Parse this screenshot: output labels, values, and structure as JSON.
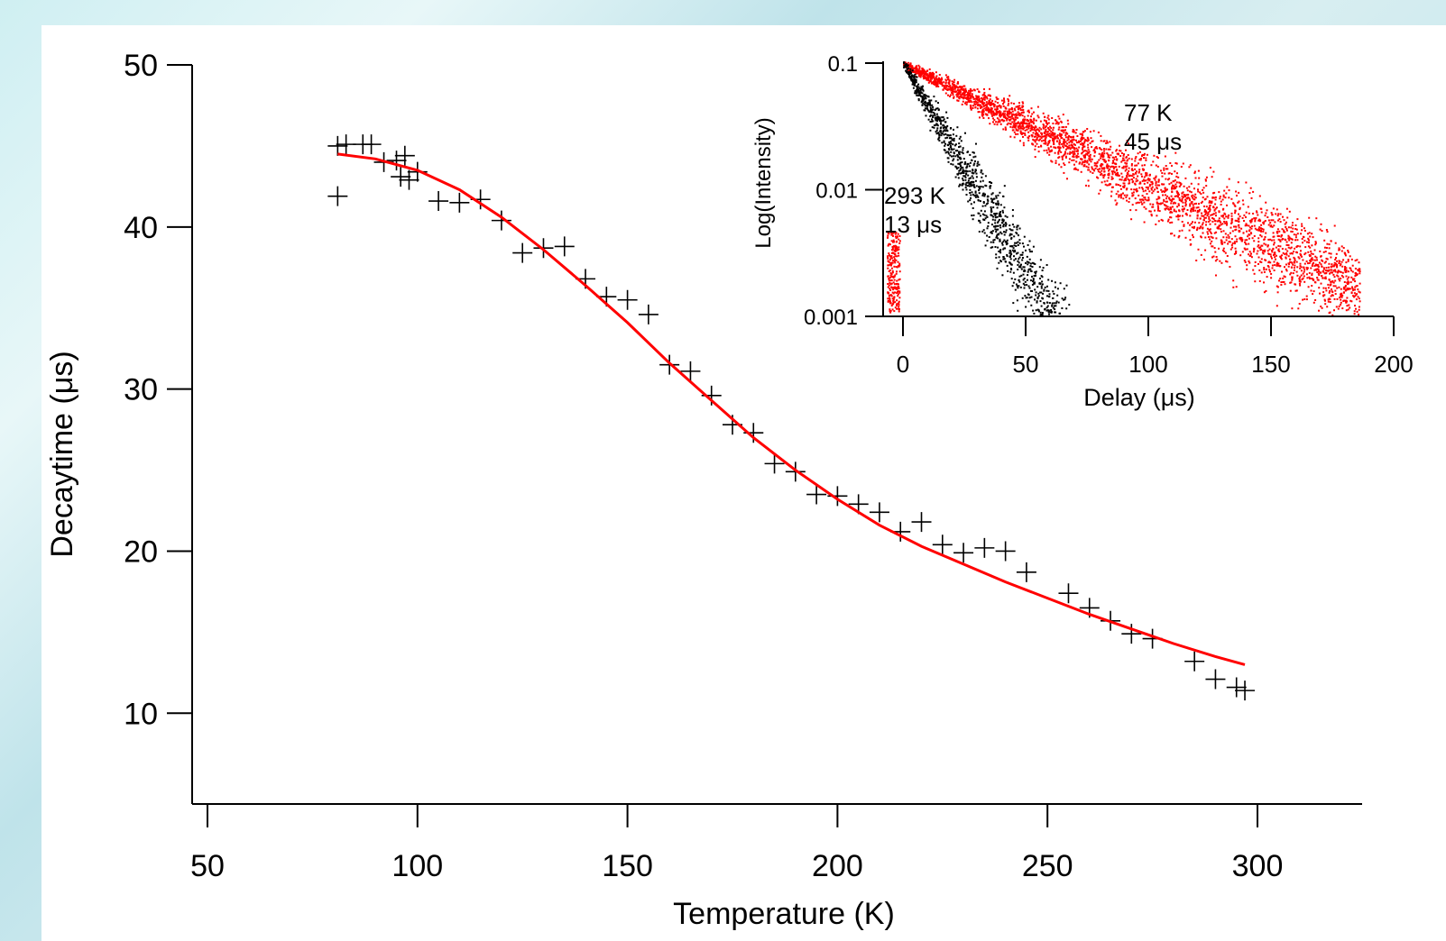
{
  "chart_data": [
    {
      "type": "scatter",
      "title": "",
      "xlabel": "Temperature (K)",
      "ylabel": "Decaytime (μs)",
      "xlim": [
        45,
        325
      ],
      "ylim": [
        4.4,
        50
      ],
      "xticks": [
        "50",
        "100",
        "150",
        "200",
        "250",
        "300"
      ],
      "yticks": [
        "10",
        "20",
        "30",
        "40",
        "50"
      ],
      "grid": false,
      "legend": "none",
      "series": [
        {
          "kind": "markers",
          "marker": "plus",
          "color": "#000000",
          "points": [
            [
              81,
              45.0
            ],
            [
              81,
              41.9
            ],
            [
              83,
              45.1
            ],
            [
              87,
              45.1
            ],
            [
              89,
              45.1
            ],
            [
              92,
              44.0
            ],
            [
              95,
              44.1
            ],
            [
              96,
              43.1
            ],
            [
              97,
              44.4
            ],
            [
              98,
              42.9
            ],
            [
              100,
              43.4
            ],
            [
              105,
              41.6
            ],
            [
              110,
              41.5
            ],
            [
              115,
              41.7
            ],
            [
              120,
              40.4
            ],
            [
              125,
              38.4
            ],
            [
              130,
              38.7
            ],
            [
              135,
              38.8
            ],
            [
              140,
              36.8
            ],
            [
              145,
              35.7
            ],
            [
              150,
              35.5
            ],
            [
              155,
              34.6
            ],
            [
              160,
              31.5
            ],
            [
              165,
              31.1
            ],
            [
              170,
              29.6
            ],
            [
              175,
              27.8
            ],
            [
              180,
              27.3
            ],
            [
              185,
              25.4
            ],
            [
              190,
              24.9
            ],
            [
              195,
              23.5
            ],
            [
              200,
              23.4
            ],
            [
              205,
              22.9
            ],
            [
              210,
              22.4
            ],
            [
              215,
              21.2
            ],
            [
              220,
              21.8
            ],
            [
              225,
              20.4
            ],
            [
              230,
              19.9
            ],
            [
              235,
              20.2
            ],
            [
              240,
              20.0
            ],
            [
              245,
              18.7
            ],
            [
              255,
              17.4
            ],
            [
              260,
              16.5
            ],
            [
              265,
              15.7
            ],
            [
              270,
              14.9
            ],
            [
              275,
              14.6
            ],
            [
              285,
              13.2
            ],
            [
              290,
              12.1
            ],
            [
              295,
              11.6
            ],
            [
              297,
              11.4
            ]
          ]
        },
        {
          "kind": "line",
          "color": "#ff0000",
          "points": [
            [
              81,
              44.5
            ],
            [
              90,
              44.2
            ],
            [
              100,
              43.5
            ],
            [
              110,
              42.3
            ],
            [
              120,
              40.6
            ],
            [
              130,
              38.6
            ],
            [
              140,
              36.4
            ],
            [
              150,
              34.1
            ],
            [
              160,
              31.6
            ],
            [
              170,
              29.3
            ],
            [
              180,
              27.0
            ],
            [
              190,
              25.0
            ],
            [
              200,
              23.2
            ],
            [
              210,
              21.6
            ],
            [
              220,
              20.3
            ],
            [
              230,
              19.2
            ],
            [
              240,
              18.1
            ],
            [
              250,
              17.1
            ],
            [
              260,
              16.1
            ],
            [
              270,
              15.2
            ],
            [
              280,
              14.3
            ],
            [
              290,
              13.5
            ],
            [
              297,
              13.0
            ]
          ]
        }
      ]
    },
    {
      "type": "scatter",
      "title": "",
      "xlabel": "Delay (μs)",
      "ylabel": "Log(Intensity)",
      "xlim": [
        -8,
        200
      ],
      "ylim": [
        0.001,
        0.12
      ],
      "yscale": "log",
      "xticks": [
        "0",
        "50",
        "100",
        "150",
        "200"
      ],
      "yticks": [
        "0.001",
        "0.01",
        "0.1"
      ],
      "grid": false,
      "legend": "none",
      "series": [
        {
          "kind": "dense-markers",
          "color": "#ff0000",
          "decay_time_us": 45,
          "amplitude": 0.1,
          "x_range": [
            0,
            186
          ]
        },
        {
          "kind": "dense-markers",
          "color": "#000000",
          "decay_time_us": 13,
          "amplitude": 0.1,
          "x_range": [
            0,
            186
          ]
        }
      ],
      "annotations": [
        {
          "line1": "77 K",
          "line2": "45 μs"
        },
        {
          "line1": "293 K",
          "line2": "13 μs"
        }
      ]
    }
  ]
}
